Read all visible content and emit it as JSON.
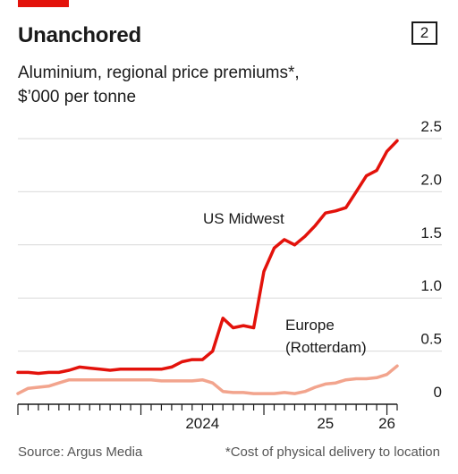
{
  "header": {
    "title": "Unanchored",
    "chart_number": "2",
    "subtitle_line1": "Aluminium, regional price premiums*,",
    "subtitle_line2": "$’000 per tonne"
  },
  "footer": {
    "source": "Source: Argus Media",
    "note": "*Cost of physical delivery to location"
  },
  "colors": {
    "accent": "#e3120b",
    "us_midwest": "#e3120b",
    "europe": "#f2a48d",
    "grid": "#d9d9d9",
    "axis": "#1a1a1a"
  },
  "chart_data": {
    "type": "line",
    "title": "Unanchored",
    "subtitle": "Aluminium, regional price premiums*, $’000 per tonne",
    "x_ticks": [
      "2024",
      "25",
      "26"
    ],
    "y_ticks": [
      "2.5",
      "2.0",
      "1.5",
      "1.0",
      "0.5",
      "0"
    ],
    "ylim": [
      0,
      2.5
    ],
    "xlim": [
      "2023-01",
      "2026-02"
    ],
    "grid": true,
    "series": [
      {
        "name": "US Midwest",
        "label": "US Midwest",
        "color": "#e3120b",
        "points": [
          [
            "2023-01",
            0.3
          ],
          [
            "2023-02",
            0.3
          ],
          [
            "2023-03",
            0.29
          ],
          [
            "2023-04",
            0.3
          ],
          [
            "2023-05",
            0.3
          ],
          [
            "2023-06",
            0.32
          ],
          [
            "2023-07",
            0.35
          ],
          [
            "2023-08",
            0.34
          ],
          [
            "2023-09",
            0.33
          ],
          [
            "2023-10",
            0.32
          ],
          [
            "2023-11",
            0.33
          ],
          [
            "2023-12",
            0.33
          ],
          [
            "2024-01",
            0.33
          ],
          [
            "2024-02",
            0.33
          ],
          [
            "2024-03",
            0.33
          ],
          [
            "2024-04",
            0.35
          ],
          [
            "2024-05",
            0.4
          ],
          [
            "2024-06",
            0.42
          ],
          [
            "2024-07",
            0.42
          ],
          [
            "2024-08",
            0.5
          ],
          [
            "2024-09",
            0.81
          ],
          [
            "2024-10",
            0.72
          ],
          [
            "2024-11",
            0.74
          ],
          [
            "2024-12",
            0.72
          ],
          [
            "2025-01",
            1.25
          ],
          [
            "2025-02",
            1.47
          ],
          [
            "2025-03",
            1.55
          ],
          [
            "2025-04",
            1.5
          ],
          [
            "2025-05",
            1.58
          ],
          [
            "2025-06",
            1.68
          ],
          [
            "2025-07",
            1.8
          ],
          [
            "2025-08",
            1.82
          ],
          [
            "2025-09",
            1.85
          ],
          [
            "2025-10",
            2.0
          ],
          [
            "2025-11",
            2.15
          ],
          [
            "2025-12",
            2.2
          ],
          [
            "2026-01",
            2.38
          ],
          [
            "2026-02",
            2.48
          ]
        ]
      },
      {
        "name": "Europe (Rotterdam)",
        "label_line1": "Europe",
        "label_line2": "(Rotterdam)",
        "color": "#f2a48d",
        "points": [
          [
            "2023-01",
            0.1
          ],
          [
            "2023-02",
            0.15
          ],
          [
            "2023-03",
            0.16
          ],
          [
            "2023-04",
            0.17
          ],
          [
            "2023-05",
            0.2
          ],
          [
            "2023-06",
            0.23
          ],
          [
            "2023-07",
            0.23
          ],
          [
            "2023-08",
            0.23
          ],
          [
            "2023-09",
            0.23
          ],
          [
            "2023-10",
            0.23
          ],
          [
            "2023-11",
            0.23
          ],
          [
            "2023-12",
            0.23
          ],
          [
            "2024-01",
            0.23
          ],
          [
            "2024-02",
            0.23
          ],
          [
            "2024-03",
            0.22
          ],
          [
            "2024-04",
            0.22
          ],
          [
            "2024-05",
            0.22
          ],
          [
            "2024-06",
            0.22
          ],
          [
            "2024-07",
            0.23
          ],
          [
            "2024-08",
            0.2
          ],
          [
            "2024-09",
            0.12
          ],
          [
            "2024-10",
            0.11
          ],
          [
            "2024-11",
            0.11
          ],
          [
            "2024-12",
            0.1
          ],
          [
            "2025-01",
            0.1
          ],
          [
            "2025-02",
            0.1
          ],
          [
            "2025-03",
            0.11
          ],
          [
            "2025-04",
            0.1
          ],
          [
            "2025-05",
            0.12
          ],
          [
            "2025-06",
            0.16
          ],
          [
            "2025-07",
            0.19
          ],
          [
            "2025-08",
            0.2
          ],
          [
            "2025-09",
            0.23
          ],
          [
            "2025-10",
            0.24
          ],
          [
            "2025-11",
            0.24
          ],
          [
            "2025-12",
            0.25
          ],
          [
            "2026-01",
            0.28
          ],
          [
            "2026-02",
            0.36
          ]
        ]
      }
    ]
  }
}
